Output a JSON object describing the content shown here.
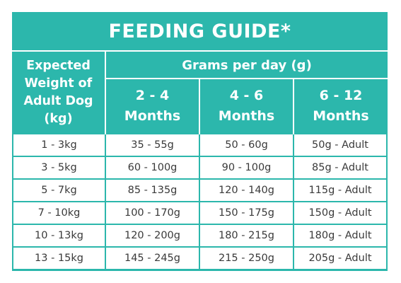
{
  "title": "FEEDING GUIDE*",
  "weight_header": "Expected Weight of Adult Dog (kg)",
  "grams_header": "Grams per day (g)",
  "age_headers": [
    "2 - 4 Months",
    "4 - 6 Months",
    "6 - 12 Months"
  ],
  "rows": [
    {
      "weight": "1 - 3kg",
      "g2_4": "35 - 55g",
      "g4_6": "50 - 60g",
      "g6_12": "50g - Adult"
    },
    {
      "weight": "3 - 5kg",
      "g2_4": "60 - 100g",
      "g4_6": "90 - 100g",
      "g6_12": "85g - Adult"
    },
    {
      "weight": "5 - 7kg",
      "g2_4": "85 - 135g",
      "g4_6": "120 - 140g",
      "g6_12": "115g - Adult"
    },
    {
      "weight": "7 - 10kg",
      "g2_4": "100 - 170g",
      "g4_6": "150 - 175g",
      "g6_12": "150g - Adult"
    },
    {
      "weight": "10 - 13kg",
      "g2_4": "120 - 200g",
      "g4_6": "180 - 215g",
      "g6_12": "180g - Adult"
    },
    {
      "weight": "13 - 15kg",
      "g2_4": "145 - 245g",
      "g4_6": "215 - 250g",
      "g6_12": "205g - Adult"
    }
  ],
  "colors": {
    "teal": "#2cb7ac",
    "cell_text": "#3a3a3a"
  }
}
